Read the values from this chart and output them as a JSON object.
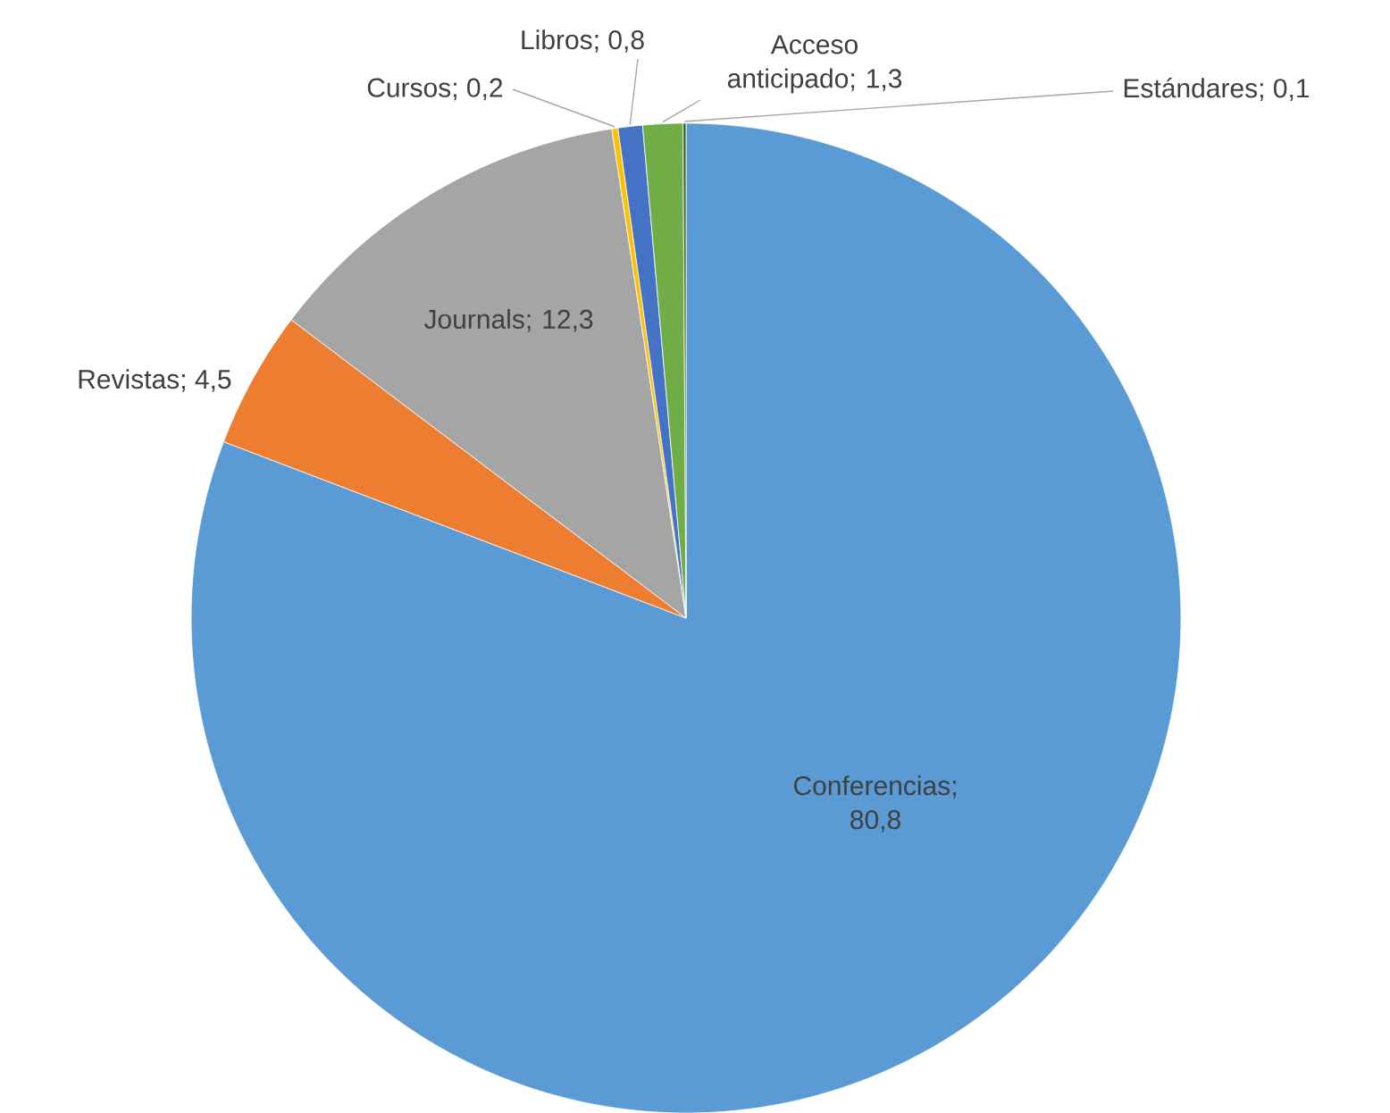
{
  "chart_data": {
    "type": "pie",
    "categories": [
      "Conferencias",
      "Revistas",
      "Journals",
      "Cursos",
      "Libros",
      "Acceso anticipado",
      "Estándares"
    ],
    "values": [
      80.8,
      4.5,
      12.3,
      0.2,
      0.8,
      1.3,
      0.1
    ],
    "colors": [
      "#5b9bd5",
      "#ed7d31",
      "#a5a5a5",
      "#ffc000",
      "#4472c4",
      "#70ad47",
      "#43682b"
    ],
    "value_labels": [
      "; 80,8",
      "; 4,5",
      "; 12,3",
      "; 0,2",
      "; 0,8",
      "; 1,3",
      "; 0,1"
    ]
  }
}
